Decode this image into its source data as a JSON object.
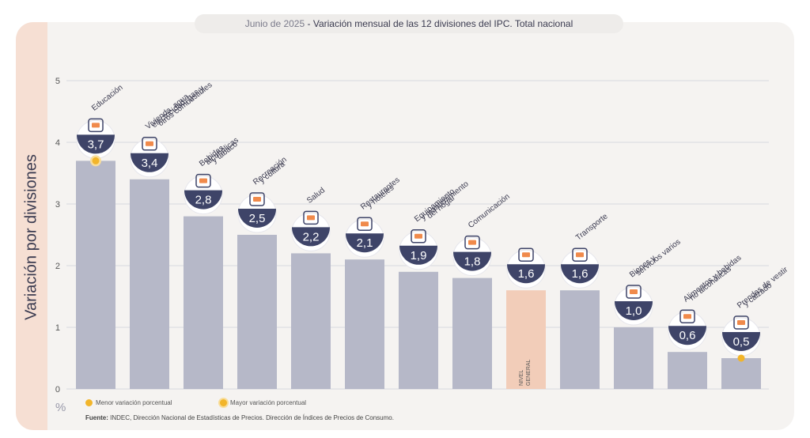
{
  "header": {
    "date": "Junio de 2025",
    "separator": " - ",
    "title": "Variación mensual de las 12 divisiones del IPC. Total nacional"
  },
  "colors": {
    "bar": "#b6b8c8",
    "bar_general": "#f2cdb9",
    "badge": "#3e4468",
    "accent": "#f2b52a",
    "grid": "#d8d8de"
  },
  "unit_label": "%",
  "legend": {
    "min_label": "Menor variación porcentual",
    "max_label": "Mayor variación porcentual"
  },
  "source": {
    "label": "Fuente:",
    "text": " INDEC, Dirección Nacional de Estadísticas de Precios. Dirección de Índices de Precios de Consumo."
  },
  "chart_data": {
    "type": "bar",
    "ylabel": "Variación por divisiones",
    "ylim": [
      0,
      5
    ],
    "yticks": [
      "0",
      "1",
      "2",
      "3",
      "4",
      "5"
    ],
    "grid": true,
    "categories": [
      [
        "Educación"
      ],
      [
        "Vivienda, agua,",
        "electricidad, gas y",
        "otros combustibles"
      ],
      [
        "Bebidas",
        "alcohólicas",
        "y tabaco"
      ],
      [
        "Recreación",
        "y cultura"
      ],
      [
        "Salud"
      ],
      [
        "Restaurantes",
        "y hoteles"
      ],
      [
        "Equipamiento",
        "y mantenimiento",
        "del hogar"
      ],
      [
        "Comunicación"
      ],
      [
        "NIVEL",
        "GENERAL"
      ],
      [
        "Transporte"
      ],
      [
        "Bienes y",
        "servicios varios"
      ],
      [
        "Alimentos y bebidas",
        "no alcohólicas"
      ],
      [
        "Prendas de vestir",
        "y calzado"
      ]
    ],
    "values": [
      3.7,
      3.4,
      2.8,
      2.5,
      2.2,
      2.1,
      1.9,
      1.8,
      1.6,
      1.6,
      1.0,
      0.6,
      0.5
    ],
    "value_labels": [
      "3,7",
      "3,4",
      "2,8",
      "2,5",
      "2,2",
      "2,1",
      "1,9",
      "1,8",
      "1,6",
      "1,6",
      "1,0",
      "0,6",
      "0,5"
    ],
    "general_index": 8,
    "max_index": 0,
    "min_index": 12
  }
}
